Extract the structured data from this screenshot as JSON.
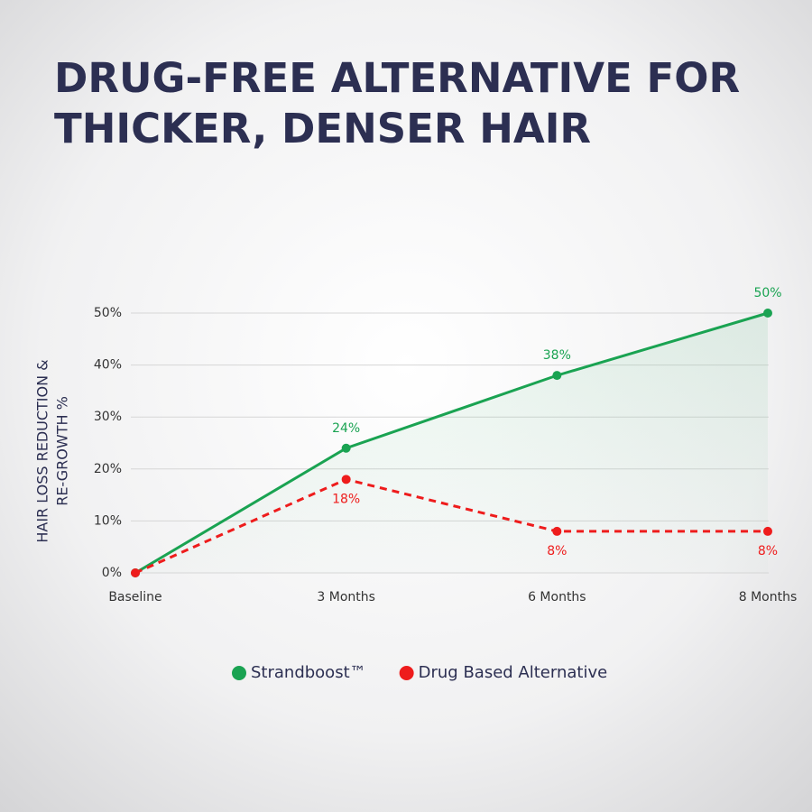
{
  "chart_data": {
    "type": "line",
    "title": [
      "DRUG-FREE ALTERNATIVE FOR",
      "THICKER, DENSER HAIR"
    ],
    "y_label": [
      "HAIR LOSS REDUCTION &",
      "RE-GROWTH %"
    ],
    "categories": [
      "Baseline",
      "3 Months",
      "6 Months",
      "8 Months"
    ],
    "series": [
      {
        "name": "Strandboost™",
        "color": "#1aa352",
        "dashed": false,
        "area": true,
        "values": [
          0,
          24,
          38,
          50
        ],
        "value_labels": [
          null,
          "24%",
          "38%",
          "50%"
        ]
      },
      {
        "name": "Drug Based Alternative",
        "color": "#ee1c1c",
        "dashed": true,
        "area": false,
        "values": [
          0,
          18,
          8,
          8
        ],
        "value_labels": [
          null,
          "18%",
          "8%",
          "8%"
        ]
      }
    ],
    "ylim": [
      0,
      50
    ],
    "yticks": [
      {
        "value": 0,
        "label": "0%"
      },
      {
        "value": 10,
        "label": "10%"
      },
      {
        "value": 20,
        "label": "20%"
      },
      {
        "value": 30,
        "label": "30%"
      },
      {
        "value": 40,
        "label": "40%"
      },
      {
        "value": 50,
        "label": "50%"
      }
    ],
    "grid": true
  }
}
